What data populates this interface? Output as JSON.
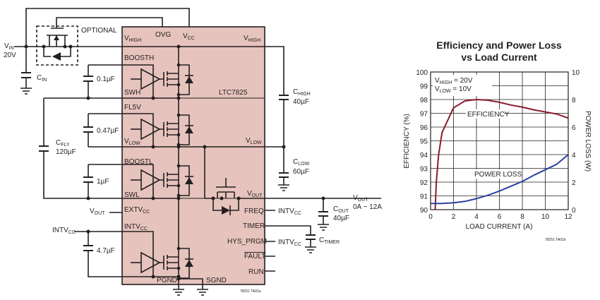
{
  "schematic": {
    "chip_name": "LTC7825",
    "chip_color": "#e6c3bd",
    "vin": {
      "main": "V",
      "sub": "IN",
      "value": "20V"
    },
    "optional": "OPTIONAL",
    "pins": {
      "vhigh_left": {
        "main": "V",
        "sub": "HIGH"
      },
      "ovg": "OVG",
      "vcc": {
        "main": "V",
        "sub": "CC"
      },
      "vhigh_right": {
        "main": "V",
        "sub": "HIGH"
      },
      "boosth": "BOOSTH",
      "swh": "SWH",
      "fl5v": "FL5V",
      "vlow_left": {
        "main": "V",
        "sub": "LOW"
      },
      "vlow_right": {
        "main": "V",
        "sub": "LOW"
      },
      "boostl": "BOOSTL",
      "swl": "SWL",
      "vout": {
        "main": "V",
        "sub": "OUT"
      },
      "extvcc": {
        "main": "EXTV",
        "sub": "CC"
      },
      "intvcc": {
        "main": "INTV",
        "sub": "CC"
      },
      "freq": "FREQ",
      "timer": "TIMER",
      "hys_prgm": "HYS_PRGM",
      "fault": "FAULT",
      "run": "RUN",
      "pgnd": "PGND",
      "sgnd": "SGND"
    },
    "components": {
      "cin": {
        "main": "C",
        "sub": "IN"
      },
      "c_boosth": "0.1µF",
      "c_fl5v": "0.47µF",
      "cfly": {
        "main": "C",
        "sub": "FLY",
        "value": "120µF"
      },
      "c_boostl": "1µF",
      "c_intvcc": "4.7µF",
      "chigh": {
        "main": "C",
        "sub": "HIGH",
        "value": "40µF"
      },
      "clow": {
        "main": "C",
        "sub": "LOW",
        "value": "60µF"
      },
      "cout": {
        "main": "C",
        "sub": "OUT",
        "value": "40µF"
      },
      "ctimer": {
        "main": "C",
        "sub": "TIMER"
      }
    },
    "nets": {
      "vout_left": {
        "main": "V",
        "sub": "OUT"
      },
      "intvcc_left": {
        "main": "INTV",
        "sub": "CC"
      },
      "intvcc_freq": {
        "main": "INTV",
        "sub": "CC"
      },
      "intvcc_hys": {
        "main": "INTV",
        "sub": "CC"
      },
      "vout_out": {
        "main": "V",
        "sub": "OUT",
        "range": "0A ~ 12A"
      }
    },
    "figure_id": "78251 TA01a"
  },
  "chart_data": {
    "type": "line",
    "title": "Efficiency and Power Loss",
    "subtitle": "vs Load Current",
    "xlabel": "LOAD CURRENT (A)",
    "ylabel": "EFFICIENCY (%)",
    "y2label": "POWER LOSS (W)",
    "xlim": [
      0,
      12
    ],
    "ylim": [
      90,
      100
    ],
    "y2lim": [
      0,
      10
    ],
    "xticks": [
      "0",
      "2",
      "4",
      "6",
      "8",
      "10",
      "12"
    ],
    "yticks": [
      "90",
      "91",
      "92",
      "93",
      "94",
      "95",
      "96",
      "97",
      "98",
      "99",
      "100"
    ],
    "y2ticks": [
      "0",
      "2",
      "4",
      "6",
      "8",
      "10"
    ],
    "grid": true,
    "annotation": {
      "line1": {
        "main": "V",
        "sub": "HIGH",
        "rest": " = 20V"
      },
      "line2": {
        "main": "V",
        "sub": "LOW",
        "rest": " = 10V"
      }
    },
    "figure_id": "78251 TA01b",
    "series": [
      {
        "name": "EFFICIENCY",
        "axis": "left",
        "color": "#8b1a2b",
        "x": [
          0.4,
          0.5,
          0.7,
          1,
          1.5,
          2,
          3,
          4,
          5,
          6,
          7,
          8,
          9,
          10,
          11,
          12
        ],
        "y": [
          90,
          92,
          94,
          95.6,
          96.5,
          97.4,
          97.9,
          98,
          97.95,
          97.8,
          97.6,
          97.45,
          97.25,
          97.1,
          96.95,
          96.65
        ]
      },
      {
        "name": "POWER LOSS",
        "axis": "right",
        "color": "#2e3f9e",
        "x": [
          0,
          1,
          2,
          3,
          4,
          5,
          6,
          7,
          8,
          9,
          10,
          11,
          12
        ],
        "y": [
          0.45,
          0.45,
          0.5,
          0.6,
          0.8,
          1.05,
          1.35,
          1.7,
          2.05,
          2.5,
          2.9,
          3.3,
          4.0
        ]
      }
    ]
  }
}
